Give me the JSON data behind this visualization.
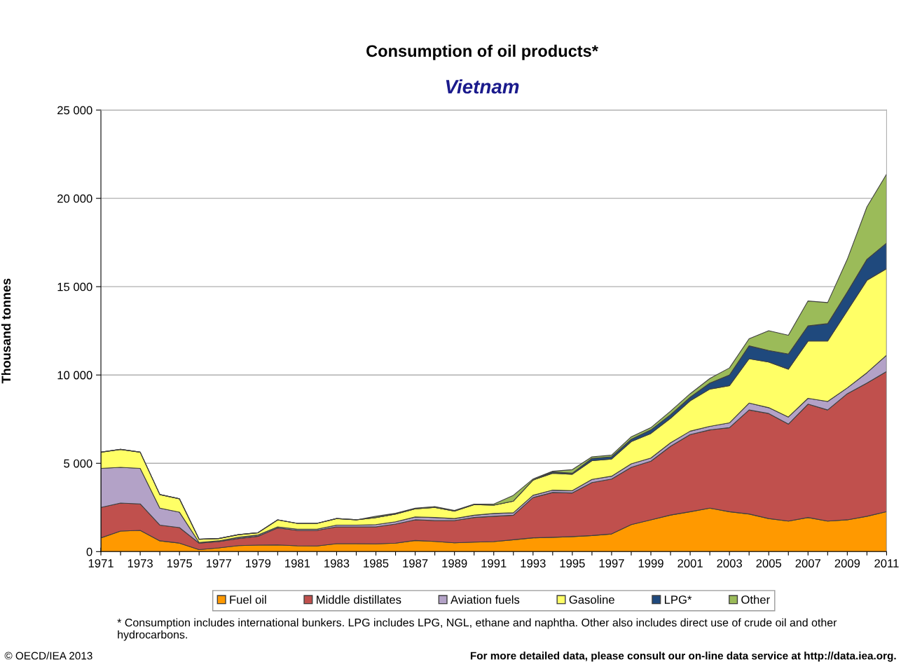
{
  "chart_data": {
    "type": "area",
    "stacked": true,
    "title": "Consumption of oil products*",
    "subtitle": "Vietnam",
    "ylabel": "Thousand tonnes",
    "x": [
      1971,
      1972,
      1973,
      1974,
      1975,
      1976,
      1977,
      1978,
      1979,
      1980,
      1981,
      1982,
      1983,
      1984,
      1985,
      1986,
      1987,
      1988,
      1989,
      1990,
      1991,
      1992,
      1993,
      1994,
      1995,
      1996,
      1997,
      1998,
      1999,
      2000,
      2001,
      2002,
      2003,
      2004,
      2005,
      2006,
      2007,
      2008,
      2009,
      2010,
      2011
    ],
    "series": [
      {
        "name": "Fuel oil",
        "color": "#ff9900",
        "values": [
          780,
          1160,
          1200,
          610,
          480,
          110,
          210,
          340,
          370,
          380,
          330,
          320,
          450,
          450,
          440,
          480,
          630,
          580,
          500,
          540,
          570,
          670,
          780,
          810,
          850,
          910,
          1000,
          1530,
          1800,
          2070,
          2260,
          2460,
          2260,
          2130,
          1870,
          1730,
          1930,
          1730,
          1800,
          2000,
          2260
        ]
      },
      {
        "name": "Middle distillates",
        "color": "#c0504d",
        "values": [
          1720,
          1590,
          1500,
          890,
          880,
          370,
          360,
          400,
          500,
          960,
          870,
          880,
          950,
          950,
          960,
          1080,
          1170,
          1180,
          1260,
          1390,
          1430,
          1390,
          2280,
          2540,
          2470,
          3000,
          3110,
          3240,
          3320,
          3890,
          4370,
          4430,
          4760,
          5890,
          5950,
          5490,
          6420,
          6290,
          7140,
          7540,
          7940
        ]
      },
      {
        "name": "Aviation fuels",
        "color": "#b3a2c7",
        "values": [
          2210,
          2020,
          2010,
          960,
          870,
          40,
          40,
          70,
          70,
          60,
          70,
          70,
          100,
          100,
          130,
          130,
          160,
          170,
          110,
          130,
          160,
          140,
          130,
          130,
          130,
          180,
          160,
          200,
          180,
          200,
          190,
          200,
          270,
          390,
          330,
          400,
          330,
          480,
          330,
          590,
          920
        ]
      },
      {
        "name": "Gasoline",
        "color": "#ffff66",
        "values": [
          920,
          1020,
          920,
          770,
          760,
          180,
          130,
          150,
          130,
          400,
          330,
          330,
          370,
          300,
          400,
          440,
          460,
          570,
          420,
          600,
          470,
          660,
          860,
          960,
          930,
          1060,
          970,
          1260,
          1390,
          1390,
          1720,
          2110,
          2110,
          2510,
          2580,
          2710,
          3240,
          3420,
          4370,
          5230,
          4900
        ]
      },
      {
        "name": "LPG*",
        "color": "#1f497d",
        "values": [
          0,
          0,
          0,
          0,
          0,
          0,
          0,
          0,
          0,
          0,
          0,
          0,
          0,
          0,
          0,
          0,
          0,
          0,
          0,
          0,
          0,
          0,
          0,
          70,
          60,
          130,
          130,
          130,
          200,
          200,
          200,
          340,
          600,
          730,
          660,
          860,
          860,
          990,
          1060,
          1190,
          1450
        ]
      },
      {
        "name": "Other",
        "color": "#9bbb59",
        "values": [
          0,
          0,
          0,
          0,
          0,
          0,
          0,
          0,
          0,
          0,
          0,
          0,
          0,
          0,
          70,
          40,
          40,
          50,
          40,
          30,
          60,
          330,
          60,
          40,
          200,
          90,
          90,
          140,
          130,
          200,
          200,
          260,
          400,
          400,
          1120,
          1060,
          1410,
          1190,
          1850,
          2970,
          3900
        ]
      }
    ],
    "xlim": [
      1971,
      2011
    ],
    "xticks": [
      1971,
      {
        "value": 1972,
        "label": null
      },
      1973,
      {
        "value": 1974,
        "label": null
      },
      1975,
      {
        "value": 1976,
        "label": null
      },
      1977,
      {
        "value": 1978,
        "label": null
      },
      1979,
      {
        "value": 1980,
        "label": null
      },
      1981,
      {
        "value": 1982,
        "label": null
      },
      1983,
      {
        "value": 1984,
        "label": null
      },
      1985,
      {
        "value": 1986,
        "label": null
      },
      1987,
      {
        "value": 1988,
        "label": null
      },
      1989,
      {
        "value": 1990,
        "label": null
      },
      1991,
      {
        "value": 1992,
        "label": null
      },
      1993,
      {
        "value": 1994,
        "label": null
      },
      1995,
      {
        "value": 1996,
        "label": null
      },
      1997,
      {
        "value": 1998,
        "label": null
      },
      1999,
      {
        "value": 2000,
        "label": null
      },
      2001,
      {
        "value": 2002,
        "label": null
      },
      2003,
      {
        "value": 2004,
        "label": null
      },
      2005,
      {
        "value": 2006,
        "label": null
      },
      2007,
      {
        "value": 2008,
        "label": null
      },
      2009,
      {
        "value": 2010,
        "label": null
      },
      2011
    ],
    "ylim": [
      0,
      25000
    ],
    "yticks": [
      0,
      {
        "value": 5000,
        "label": "5 000"
      },
      {
        "value": 10000,
        "label": "10 000"
      },
      {
        "value": 15000,
        "label": "15 000"
      },
      {
        "value": 20000,
        "label": "20 000"
      },
      {
        "value": 25000,
        "label": "25 000"
      }
    ],
    "grid": "y",
    "legend": "bottom",
    "annotations": [
      "* Consumption includes international bunkers. LPG includes LPG, NGL, ethane and naphtha. Other also includes direct use of crude oil and other hydrocarbons.",
      "© OECD/IEA 2013",
      "For more detailed data, please consult our on-line data service at http://data.iea.org."
    ]
  }
}
